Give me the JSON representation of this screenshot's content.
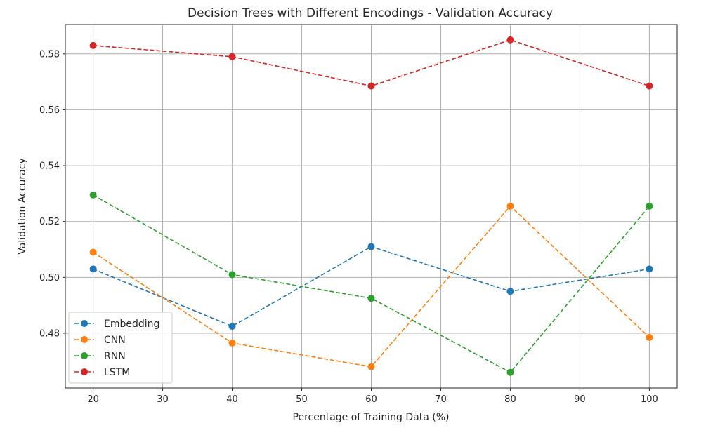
{
  "chart_data": {
    "type": "line",
    "title": "Decision Trees with Different Encodings - Validation Accuracy",
    "xlabel": "Percentage of Training Data (%)",
    "ylabel": "Validation Accuracy",
    "x": [
      20,
      40,
      60,
      80,
      100
    ],
    "xlim": [
      16,
      104
    ],
    "ylim": [
      0.4604,
      0.5905
    ],
    "xticks": [
      20,
      30,
      40,
      50,
      60,
      70,
      80,
      90,
      100
    ],
    "yticks": [
      0.48,
      0.5,
      0.52,
      0.54,
      0.56,
      0.58
    ],
    "ytick_labels": [
      "0.48",
      "0.50",
      "0.52",
      "0.54",
      "0.56",
      "0.58"
    ],
    "grid": true,
    "legend_position": "lower-left",
    "line_style": "dashed",
    "marker": "circle",
    "series": [
      {
        "name": "Embedding",
        "color": "#1f77b4",
        "values": [
          0.503,
          0.4825,
          0.511,
          0.495,
          0.503
        ]
      },
      {
        "name": "CNN",
        "color": "#ff7f0e",
        "values": [
          0.509,
          0.4765,
          0.468,
          0.5255,
          0.4785
        ]
      },
      {
        "name": "RNN",
        "color": "#2ca02c",
        "values": [
          0.5295,
          0.501,
          0.4925,
          0.466,
          0.5255
        ]
      },
      {
        "name": "LSTM",
        "color": "#d62728",
        "values": [
          0.583,
          0.579,
          0.5685,
          0.585,
          0.5685
        ]
      }
    ]
  }
}
